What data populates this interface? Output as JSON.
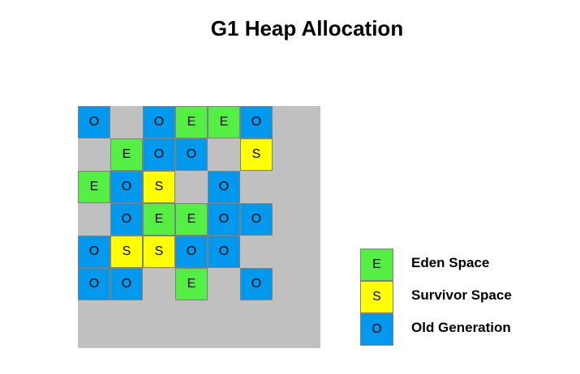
{
  "title": "G1 Heap Allocation",
  "colors": {
    "eden": "#55ee44",
    "survivor": "#ffff00",
    "old": "#0099ee",
    "heap_bg": "#c0c0c0"
  },
  "grid": {
    "rows": [
      [
        "O",
        "",
        "O",
        "E",
        "E",
        "O",
        ""
      ],
      [
        "",
        "E",
        "O",
        "O",
        "",
        "S",
        ""
      ],
      [
        "E",
        "O",
        "S",
        "",
        "O",
        "",
        ""
      ],
      [
        "",
        "O",
        "E",
        "E",
        "O",
        "O",
        ""
      ],
      [
        "O",
        "S",
        "S",
        "O",
        "O",
        "",
        ""
      ],
      [
        "O",
        "O",
        "",
        "E",
        "",
        "O",
        ""
      ],
      [
        "",
        "",
        "",
        "",
        "",
        "",
        ""
      ]
    ]
  },
  "legend": [
    {
      "letter": "E",
      "label": "Eden Space",
      "type": "E"
    },
    {
      "letter": "S",
      "label": "Survivor Space",
      "type": "S"
    },
    {
      "letter": "O",
      "label": "Old Generation",
      "type": "O"
    }
  ]
}
